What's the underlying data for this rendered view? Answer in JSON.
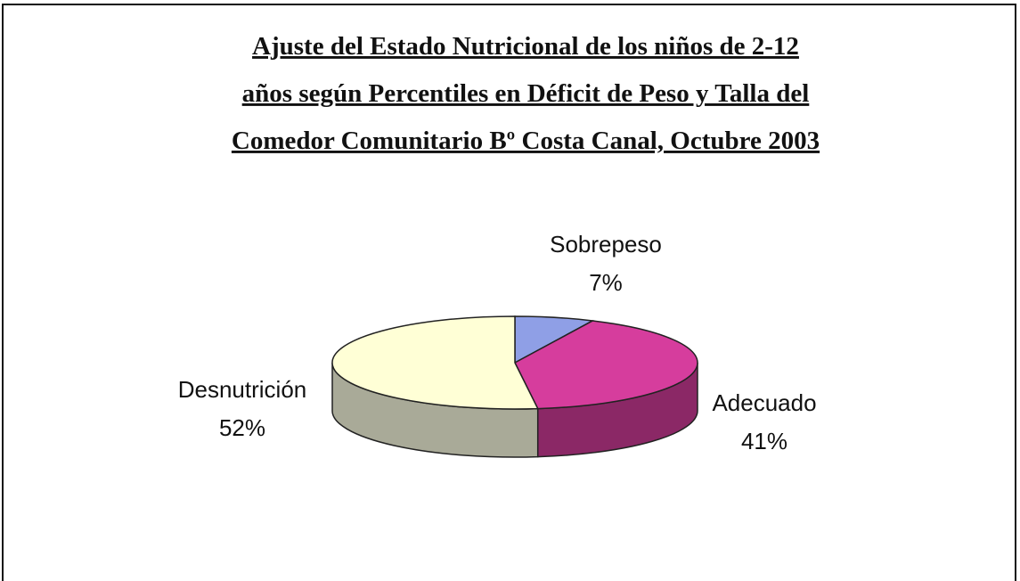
{
  "chart_data": {
    "type": "pie3d",
    "title": [
      "Ajuste del Estado Nutricional de los niños de 2-12",
      "años según Percentiles en Déficit de Peso  y Talla del",
      "Comedor Comunitario Bº Costa Canal, Octubre 2003"
    ],
    "categories": [
      "Sobrepeso",
      "Adecuado",
      "Desnutrición"
    ],
    "values": [
      7,
      41,
      52
    ],
    "value_labels": [
      "7%",
      "41%",
      "52%"
    ],
    "colors": [
      "#8f9fe6",
      "#d63d9d",
      "#ffffd6"
    ]
  }
}
